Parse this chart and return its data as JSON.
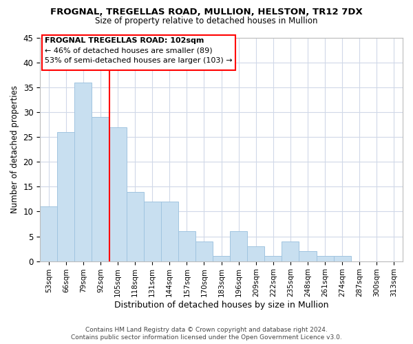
{
  "title": "FROGNAL, TREGELLAS ROAD, MULLION, HELSTON, TR12 7DX",
  "subtitle": "Size of property relative to detached houses in Mullion",
  "xlabel": "Distribution of detached houses by size in Mullion",
  "ylabel": "Number of detached properties",
  "bar_labels": [
    "53sqm",
    "66sqm",
    "79sqm",
    "92sqm",
    "105sqm",
    "118sqm",
    "131sqm",
    "144sqm",
    "157sqm",
    "170sqm",
    "183sqm",
    "196sqm",
    "209sqm",
    "222sqm",
    "235sqm",
    "248sqm",
    "261sqm",
    "274sqm",
    "287sqm",
    "300sqm",
    "313sqm"
  ],
  "bar_values": [
    11,
    26,
    36,
    29,
    27,
    14,
    12,
    12,
    6,
    4,
    1,
    6,
    3,
    1,
    4,
    2,
    1,
    1,
    0,
    0,
    0
  ],
  "bar_color": "#c8dff0",
  "bar_edge_color": "#a0c4e0",
  "red_line_index": 4,
  "annotation_title": "FROGNAL TREGELLAS ROAD: 102sqm",
  "annotation_line1": "← 46% of detached houses are smaller (89)",
  "annotation_line2": "53% of semi-detached houses are larger (103) →",
  "ylim": [
    0,
    45
  ],
  "yticks": [
    0,
    5,
    10,
    15,
    20,
    25,
    30,
    35,
    40,
    45
  ],
  "footer1": "Contains HM Land Registry data © Crown copyright and database right 2024.",
  "footer2": "Contains public sector information licensed under the Open Government Licence v3.0.",
  "background_color": "#ffffff",
  "grid_color": "#d0d8e8",
  "title_fontsize": 9.5,
  "subtitle_fontsize": 8.5
}
